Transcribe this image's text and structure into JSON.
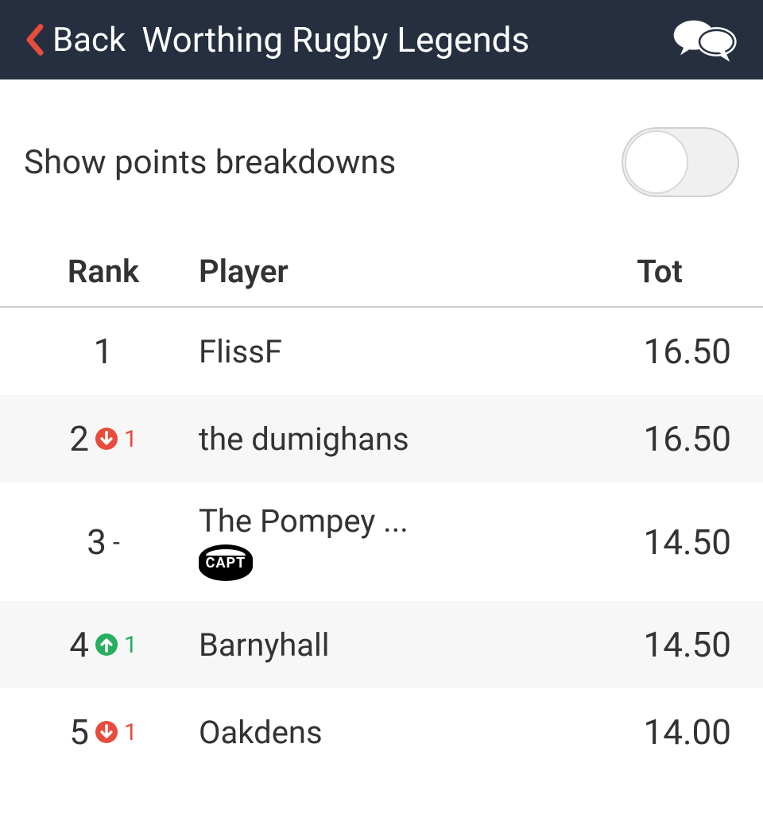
{
  "header": {
    "back_label": "Back",
    "title": "Worthing Rugby Legends"
  },
  "toggle": {
    "label": "Show points breakdowns",
    "state": false
  },
  "table": {
    "columns": {
      "rank": "Rank",
      "player": "Player",
      "tot": "Tot"
    },
    "rows": [
      {
        "rank": "1",
        "move_type": "none",
        "move_value": "",
        "player": "FlissF",
        "captain": false,
        "tot": "16.50"
      },
      {
        "rank": "2",
        "move_type": "down",
        "move_value": "1",
        "player": "the dumighans",
        "captain": false,
        "tot": "16.50"
      },
      {
        "rank": "3",
        "move_type": "dash",
        "move_value": "-",
        "player": "The Pompey ...",
        "captain": true,
        "tot": "14.50"
      },
      {
        "rank": "4",
        "move_type": "up",
        "move_value": "1",
        "player": "Barnyhall",
        "captain": false,
        "tot": "14.50"
      },
      {
        "rank": "5",
        "move_type": "down",
        "move_value": "1",
        "player": "Oakdens",
        "captain": false,
        "tot": "14.00"
      }
    ]
  },
  "colors": {
    "header_bg": "#252f3f",
    "accent_red": "#e74c3c",
    "accent_green": "#27ae60",
    "row_alt_bg": "#f7f7f7"
  }
}
